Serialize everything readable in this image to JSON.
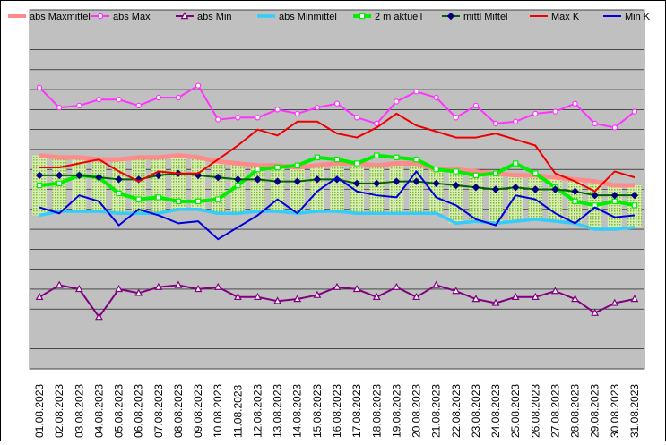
{
  "chart_data": {
    "type": "line",
    "x": [
      "01.08.2023",
      "02.08.2023",
      "03.08.2023",
      "04.08.2023",
      "05.08.2023",
      "06.08.2023",
      "07.08.2023",
      "08.08.2023",
      "09.08.2023",
      "10.08.2023",
      "11.08.2023",
      "12.08.2023",
      "13.08.2023",
      "14.08.2023",
      "15.08.2023",
      "16.08.2023",
      "17.08.2023",
      "18.08.2023",
      "19.08.2023",
      "20.08.2023",
      "21.08.2023",
      "22.08.2023",
      "23.08.2023",
      "24.08.2023",
      "25.08.2023",
      "26.08.2023",
      "27.08.2023",
      "28.08.2023",
      "29.08.2023",
      "30.08.2023",
      "31.08.2023"
    ],
    "y_range": [
      0,
      18
    ],
    "grid": true,
    "legend_position": "top",
    "band": {
      "upper_series": "abs Maxmittel",
      "lower_series": "abs Minmittel",
      "fill": "#b5d97a"
    },
    "series": [
      {
        "name": "abs Maxmittel",
        "color": "#ff8a8a",
        "width": 5,
        "marker": "none",
        "values": [
          10.7,
          10.6,
          10.6,
          10.5,
          10.5,
          10.6,
          10.6,
          10.7,
          10.6,
          10.4,
          10.3,
          10.2,
          10.2,
          10.1,
          10.2,
          10.3,
          10.3,
          10.2,
          10.3,
          10.3,
          10.0,
          10.0,
          9.9,
          9.8,
          9.7,
          9.7,
          9.6,
          9.5,
          9.4,
          9.2,
          9.2
        ]
      },
      {
        "name": "abs Max",
        "color": "#ff33ff",
        "width": 2,
        "marker": "circle",
        "values": [
          14.1,
          13.1,
          13.2,
          13.5,
          13.5,
          13.2,
          13.6,
          13.6,
          14.2,
          12.5,
          12.6,
          12.6,
          13.0,
          12.8,
          13.1,
          13.3,
          12.6,
          12.3,
          13.4,
          13.9,
          13.6,
          12.6,
          13.2,
          12.3,
          12.4,
          12.8,
          12.9,
          13.3,
          12.3,
          12.1,
          12.9
        ]
      },
      {
        "name": "abs Min",
        "color": "#800080",
        "width": 2,
        "marker": "triangle",
        "values": [
          3.6,
          4.2,
          4.0,
          2.6,
          4.0,
          3.8,
          4.1,
          4.2,
          4.0,
          4.1,
          3.6,
          3.6,
          3.4,
          3.5,
          3.7,
          4.1,
          4.0,
          3.6,
          4.1,
          3.6,
          4.2,
          3.9,
          3.5,
          3.3,
          3.6,
          3.6,
          3.9,
          3.5,
          2.8,
          3.3,
          3.5
        ]
      },
      {
        "name": "abs Minmittel",
        "color": "#33ccff",
        "width": 3.5,
        "marker": "none",
        "values": [
          7.7,
          7.9,
          7.9,
          7.9,
          7.8,
          7.8,
          7.8,
          8.0,
          8.0,
          7.8,
          7.8,
          7.9,
          7.9,
          7.8,
          7.9,
          7.9,
          7.8,
          7.8,
          7.8,
          7.8,
          7.8,
          7.3,
          7.4,
          7.3,
          7.4,
          7.5,
          7.4,
          7.3,
          7.0,
          7.0,
          7.1
        ]
      },
      {
        "name": "2 m aktuell",
        "color": "#00ee00",
        "width": 4,
        "marker": "square",
        "values": [
          9.2,
          9.3,
          9.7,
          9.6,
          8.8,
          8.5,
          8.6,
          8.4,
          8.4,
          8.5,
          9.2,
          10.0,
          10.1,
          10.2,
          10.6,
          10.5,
          10.3,
          10.7,
          10.6,
          10.5,
          10.0,
          9.9,
          9.7,
          9.8,
          10.3,
          9.8,
          9.1,
          8.4,
          8.2,
          8.4,
          8.2
        ]
      },
      {
        "name": "mittl Mittel",
        "color": "#006400",
        "width": 2,
        "marker": "diamond",
        "values": [
          9.7,
          9.7,
          9.7,
          9.6,
          9.5,
          9.5,
          9.7,
          9.8,
          9.7,
          9.6,
          9.5,
          9.5,
          9.4,
          9.4,
          9.5,
          9.5,
          9.3,
          9.3,
          9.4,
          9.4,
          9.3,
          9.2,
          9.1,
          9.0,
          9.1,
          9.0,
          9.0,
          8.9,
          8.7,
          8.7,
          8.7
        ]
      },
      {
        "name": "Max K",
        "color": "#ee0000",
        "width": 2,
        "marker": "none",
        "values": [
          10.1,
          10.1,
          10.3,
          10.5,
          9.9,
          9.4,
          9.9,
          9.8,
          9.8,
          10.5,
          11.2,
          12.0,
          11.7,
          12.4,
          12.4,
          11.8,
          11.6,
          12.1,
          12.8,
          12.2,
          11.9,
          11.6,
          11.6,
          11.8,
          11.5,
          11.2,
          9.8,
          9.4,
          8.9,
          9.9,
          9.6
        ]
      },
      {
        "name": "Min K",
        "color": "#0000dd",
        "width": 2,
        "marker": "none",
        "values": [
          8.1,
          7.8,
          8.7,
          8.4,
          7.2,
          8.0,
          7.7,
          7.3,
          7.4,
          6.5,
          7.1,
          7.7,
          8.5,
          7.8,
          8.9,
          9.6,
          8.9,
          8.7,
          8.6,
          9.9,
          8.6,
          8.2,
          7.5,
          7.2,
          8.7,
          8.5,
          7.8,
          7.3,
          8.1,
          7.6,
          7.7
        ]
      }
    ]
  }
}
